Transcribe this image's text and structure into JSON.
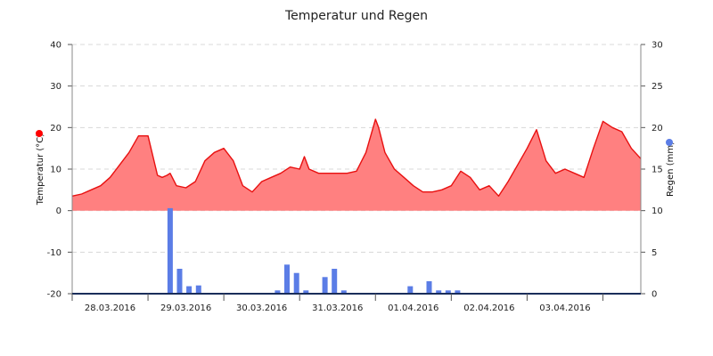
{
  "chart_data": {
    "type": "area",
    "title": "Temperatur und Regen",
    "grid": true,
    "x_axis": {
      "range": [
        "2016-03-27T12:00",
        "2016-04-04T00:00"
      ],
      "tick_labels": [
        "28.03.2016",
        "29.03.2016",
        "30.03.2016",
        "31.03.2016",
        "01.04.2016",
        "02.04.2016",
        "03.04.2016"
      ]
    },
    "y_left": {
      "label": "Temperatur (°C)",
      "range": [
        -20,
        40
      ],
      "ticks": [
        "-20",
        "-10",
        "0",
        "10",
        "20",
        "30",
        "40"
      ]
    },
    "y_right": {
      "label": "Regen (mm)",
      "range": [
        0,
        30
      ],
      "ticks": [
        "0",
        "5",
        "10",
        "15",
        "20",
        "25",
        "30"
      ]
    },
    "colors": {
      "temperature_fill": "#ff8080",
      "temperature_line": "#e81010",
      "temperature_marker": "#ff0000",
      "rain_bar": "#5b7de6",
      "rain_marker": "#5b7de6",
      "baseline": "#1a2d5a"
    },
    "series": [
      {
        "type": "area",
        "unit": "°C",
        "axis": "left",
        "x": [
          "2016-03-27T12:00",
          "2016-03-27T15:00",
          "2016-03-27T18:00",
          "2016-03-27T21:00",
          "2016-03-28T00:00",
          "2016-03-28T03:00",
          "2016-03-28T06:00",
          "2016-03-28T09:00",
          "2016-03-28T12:00",
          "2016-03-28T15:00",
          "2016-03-28T16:30",
          "2016-03-28T18:00",
          "2016-03-28T19:00",
          "2016-03-28T21:00",
          "2016-03-29T00:00",
          "2016-03-29T03:00",
          "2016-03-29T06:00",
          "2016-03-29T09:00",
          "2016-03-29T12:00",
          "2016-03-29T15:00",
          "2016-03-29T18:00",
          "2016-03-29T21:00",
          "2016-03-30T00:00",
          "2016-03-30T03:00",
          "2016-03-30T06:00",
          "2016-03-30T09:00",
          "2016-03-30T12:00",
          "2016-03-30T13:30",
          "2016-03-30T15:00",
          "2016-03-30T18:00",
          "2016-03-30T21:00",
          "2016-03-31T00:00",
          "2016-03-31T03:00",
          "2016-03-31T06:00",
          "2016-03-31T09:00",
          "2016-03-31T12:00",
          "2016-03-31T13:00",
          "2016-03-31T15:00",
          "2016-03-31T18:00",
          "2016-03-31T21:00",
          "2016-04-01T00:00",
          "2016-04-01T03:00",
          "2016-04-01T06:00",
          "2016-04-01T09:00",
          "2016-04-01T12:00",
          "2016-04-01T15:00",
          "2016-04-01T18:00",
          "2016-04-01T21:00",
          "2016-04-02T00:00",
          "2016-04-02T03:00",
          "2016-04-02T06:00",
          "2016-04-02T09:00",
          "2016-04-02T12:00",
          "2016-04-02T15:00",
          "2016-04-02T18:00",
          "2016-04-02T21:00",
          "2016-04-03T00:00",
          "2016-04-03T03:00",
          "2016-04-03T06:00",
          "2016-04-03T09:00",
          "2016-04-03T12:00",
          "2016-04-03T15:00",
          "2016-04-03T18:00",
          "2016-04-03T21:00",
          "2016-04-04T00:00"
        ],
        "values": [
          3.5,
          4,
          5,
          6,
          8,
          11,
          14,
          18,
          18,
          8.5,
          8,
          8.5,
          9,
          6,
          5.5,
          7,
          12,
          14,
          15,
          12,
          6,
          4.5,
          7,
          8,
          9,
          10.5,
          10,
          13,
          10,
          9,
          9,
          9,
          9,
          9.5,
          14,
          22,
          20,
          14,
          10,
          8,
          6,
          4.5,
          4.5,
          5,
          6,
          9.5,
          8,
          5,
          6,
          3.5,
          7,
          11,
          15,
          19.5,
          12,
          9,
          10,
          9,
          8,
          15,
          21.5,
          20,
          19,
          15,
          12.5
        ]
      },
      {
        "type": "bar",
        "unit": "mm",
        "axis": "right",
        "x": [
          "2016-03-28T19:00",
          "2016-03-28T22:00",
          "2016-03-29T01:00",
          "2016-03-29T04:00",
          "2016-03-30T05:00",
          "2016-03-30T08:00",
          "2016-03-30T11:00",
          "2016-03-30T14:00",
          "2016-03-30T20:00",
          "2016-03-30T23:00",
          "2016-03-31T02:00",
          "2016-03-31T23:00",
          "2016-04-01T05:00",
          "2016-04-01T08:00",
          "2016-04-01T11:00",
          "2016-04-01T14:00"
        ],
        "values": [
          10.3,
          3.0,
          0.9,
          1.0,
          0.4,
          3.5,
          2.5,
          0.4,
          2.0,
          3.0,
          0.4,
          0.9,
          1.5,
          0.4,
          0.4,
          0.4
        ]
      }
    ]
  }
}
